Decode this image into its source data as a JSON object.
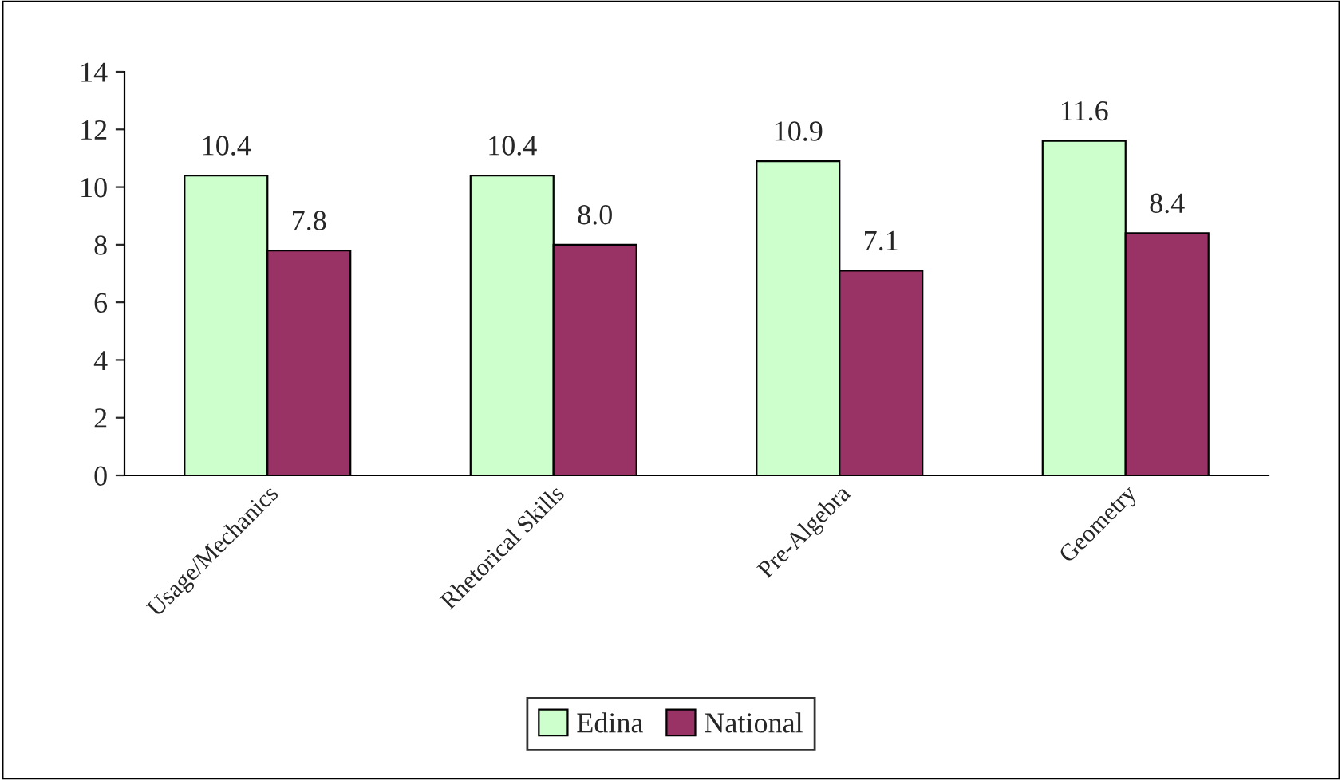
{
  "chart_data": {
    "type": "bar",
    "categories": [
      "Usage/Mechanics",
      "Rhetorical Skills",
      "Pre-Algebra",
      "Geometry"
    ],
    "series": [
      {
        "name": "Edina",
        "color": "#ccffcc",
        "values": [
          10.4,
          10.4,
          10.9,
          11.6
        ],
        "value_labels": [
          "10.4",
          "10.4",
          "10.9",
          "11.6"
        ]
      },
      {
        "name": "National",
        "color": "#993366",
        "values": [
          7.8,
          8.0,
          7.1,
          8.4
        ],
        "value_labels": [
          "7.8",
          "8.0",
          "7.1",
          "8.4"
        ]
      }
    ],
    "ylim": [
      0,
      14
    ],
    "yticks": [
      0,
      2,
      4,
      6,
      8,
      10,
      12,
      14
    ],
    "grid": false,
    "legend": "bottom"
  }
}
